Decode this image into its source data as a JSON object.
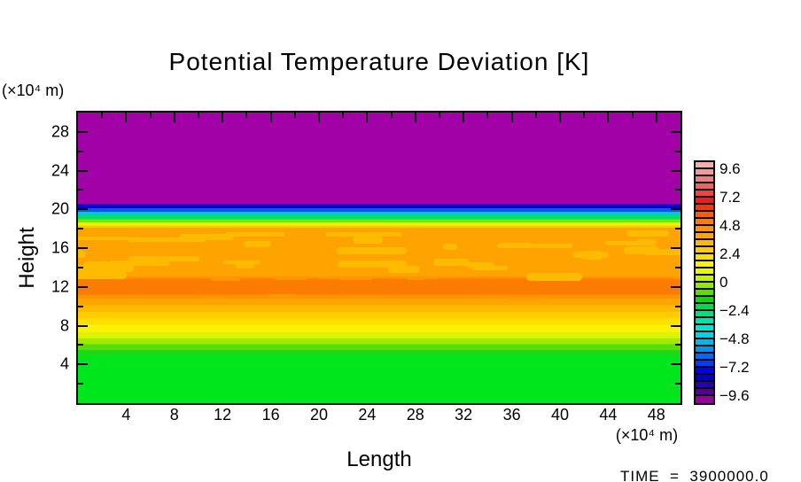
{
  "title": "Potential Temperature Deviation [K]",
  "axes": {
    "x": {
      "title": "Length",
      "unit": "(×10⁴ m)",
      "range": [
        0,
        50
      ],
      "major_ticks": [
        4,
        8,
        12,
        16,
        20,
        24,
        28,
        32,
        36,
        40,
        44,
        48
      ],
      "minor_ticks": [
        2,
        6,
        10,
        14,
        18,
        22,
        26,
        30,
        34,
        38,
        42,
        46
      ]
    },
    "y": {
      "title": "Height",
      "unit": "(×10⁴ m)",
      "range": [
        0,
        30
      ],
      "major_ticks": [
        4,
        8,
        12,
        16,
        20,
        24,
        28
      ],
      "minor_ticks": [
        2,
        6,
        10,
        14,
        18,
        22,
        26
      ]
    }
  },
  "colorbar": {
    "tick_labels": [
      "9.6",
      "7.2",
      "4.8",
      "2.4",
      "0",
      "-2.4",
      "-4.8",
      "-7.2",
      "-9.6"
    ],
    "cell_colors": [
      "#F6ADAD",
      "#F39797",
      "#F17E7E",
      "#EF6262",
      "#ED4545",
      "#EA1E1E",
      "#EF3A00",
      "#F55F00",
      "#FA7C00",
      "#FE9300",
      "#FFA500",
      "#FFB900",
      "#FFCC00",
      "#FFDF00",
      "#FFF200",
      "#E9F800",
      "#C3F000",
      "#93E700",
      "#58DE00",
      "#0CD60C",
      "#00D94B",
      "#00DD82",
      "#00E1B0",
      "#00E4D6",
      "#00D2E9",
      "#00B4ED",
      "#0091F1",
      "#0068F5",
      "#003BF9",
      "#0000F0",
      "#0000C4",
      "#2A00A8",
      "#56008F",
      "#930397"
    ]
  },
  "footer": {
    "time_label": "TIME  =  3900000.0"
  },
  "chart_data": {
    "type": "heatmap",
    "title": "Potential Temperature Deviation [K]",
    "xlabel": "Length (×10⁴ m)",
    "ylabel": "Height (×10⁴ m)",
    "xlim": [
      0,
      50
    ],
    "ylim": [
      0,
      30
    ],
    "grid": false,
    "legend_position": "right-colorbar",
    "colorbar_levels": {
      "min": -9.6,
      "max": 9.6,
      "cell_step": 0.6,
      "label_step": 2.4
    },
    "field_description": "Horizontally uniform layered temperature-deviation field; value depends on height only, with small wavy amber patches in the 13–18 layer.",
    "vertical_profile": [
      {
        "height": 30.0,
        "value": -10.0
      },
      {
        "height": 21.0,
        "value": -10.0
      },
      {
        "height": 20.4,
        "value": -8.0
      },
      {
        "height": 20.0,
        "value": -5.5
      },
      {
        "height": 19.6,
        "value": -2.5
      },
      {
        "height": 19.2,
        "value": 0.5
      },
      {
        "height": 18.8,
        "value": 2.0
      },
      {
        "height": 18.3,
        "value": 3.0
      },
      {
        "height": 16.0,
        "value": 3.4
      },
      {
        "height": 13.0,
        "value": 4.0
      },
      {
        "height": 12.0,
        "value": 5.0
      },
      {
        "height": 11.0,
        "value": 4.0
      },
      {
        "height": 10.4,
        "value": 3.4
      },
      {
        "height": 9.7,
        "value": 2.8
      },
      {
        "height": 9.0,
        "value": 2.3
      },
      {
        "height": 8.4,
        "value": 1.9
      },
      {
        "height": 7.7,
        "value": 1.4
      },
      {
        "height": 7.0,
        "value": 1.0
      },
      {
        "height": 6.3,
        "value": 0.7
      },
      {
        "height": 5.7,
        "value": 0.4
      },
      {
        "height": 5.1,
        "value": 0.2
      },
      {
        "height": 0.0,
        "value": 0.0
      }
    ],
    "bands": [
      {
        "h_top": 30.0,
        "h_bottom": 20.55,
        "value": "< -9.6",
        "color": "#A101A6"
      },
      {
        "h_top": 20.55,
        "h_bottom": 20.1,
        "value": "-8.4",
        "color": "#0008C8"
      },
      {
        "h_top": 20.1,
        "h_bottom": 19.75,
        "value": "-6.0",
        "color": "#0058F0"
      },
      {
        "h_top": 19.75,
        "h_bottom": 19.45,
        "value": "-4.2",
        "color": "#00C4E4"
      },
      {
        "h_top": 19.45,
        "h_bottom": 19.0,
        "value": "-1.8",
        "color": "#00E066"
      },
      {
        "h_top": 19.0,
        "h_bottom": 18.65,
        "value": "1.2",
        "color": "#76E800"
      },
      {
        "h_top": 18.65,
        "h_bottom": 18.35,
        "value": "2.1",
        "color": "#EDF300"
      },
      {
        "h_top": 18.35,
        "h_bottom": 18.1,
        "value": "2.7",
        "color": "#FFCA00"
      },
      {
        "h_top": 18.1,
        "h_bottom": 13.1,
        "value": "3.3",
        "color": "#FFA300"
      },
      {
        "h_top": 13.1,
        "h_bottom": 12.85,
        "value": "3.9",
        "color": "#FF9400"
      },
      {
        "h_top": 12.85,
        "h_bottom": 11.2,
        "value": "5.1",
        "color": "#FB7C00"
      },
      {
        "h_top": 11.2,
        "h_bottom": 10.8,
        "value": "4.2",
        "color": "#FE9300"
      },
      {
        "h_top": 10.8,
        "h_bottom": 10.1,
        "value": "3.3",
        "color": "#FFA500"
      },
      {
        "h_top": 10.1,
        "h_bottom": 9.4,
        "value": "2.7",
        "color": "#FFB900"
      },
      {
        "h_top": 9.4,
        "h_bottom": 8.75,
        "value": "2.1",
        "color": "#FFCC00"
      },
      {
        "h_top": 8.75,
        "h_bottom": 8.1,
        "value": "1.5",
        "color": "#FFDF00"
      },
      {
        "h_top": 8.1,
        "h_bottom": 7.3,
        "value": "0.9",
        "color": "#FFF200"
      },
      {
        "h_top": 7.3,
        "h_bottom": 6.7,
        "value": "0.7",
        "color": "#D9F400"
      },
      {
        "h_top": 6.7,
        "h_bottom": 6.1,
        "value": "0.5",
        "color": "#9FEA00"
      },
      {
        "h_top": 6.1,
        "h_bottom": 5.5,
        "value": "0.3",
        "color": "#55DE0C"
      },
      {
        "h_top": 5.5,
        "h_bottom": 4.9,
        "value": "0.1",
        "color": "#16DC16"
      },
      {
        "h_top": 4.9,
        "h_bottom": 0.0,
        "value": "0.0",
        "color": "#00E61C"
      }
    ],
    "texture": {
      "blob_zone_height_range": [
        13.4,
        17.9
      ],
      "blob_color": "#FFBB00",
      "edge_dash_color": "#FF9800",
      "edge_dash_heights": [
        13.05,
        11.15
      ]
    }
  }
}
